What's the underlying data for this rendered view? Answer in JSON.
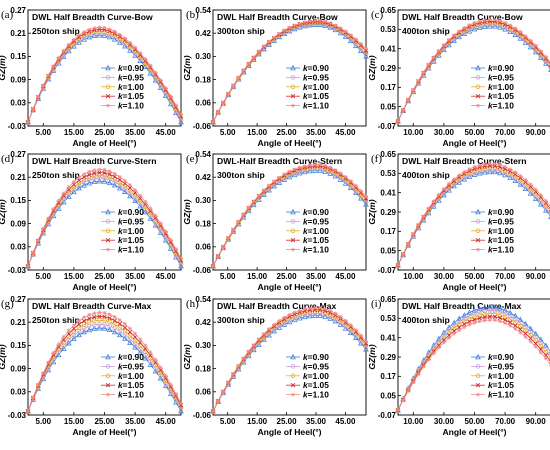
{
  "legend_k_prefix": "k",
  "series_styles": [
    {
      "color": "#3a7fd6",
      "marker": "triangle"
    },
    {
      "color": "#c9a0e0",
      "marker": "circle"
    },
    {
      "color": "#e2b02c",
      "marker": "circle"
    },
    {
      "color": "#d62a2a",
      "marker": "cross"
    },
    {
      "color": "#f08a8a",
      "marker": "star"
    }
  ],
  "chart_data": [
    {
      "type": "line",
      "panel_label": "(a)",
      "title": "DWL Half Breadth Curve-Bow",
      "ship": "250ton ship",
      "xlabel": "Angle of Heel(°)",
      "ylabel": "GZ(m)",
      "xlim": [
        0,
        50
      ],
      "ylim": [
        -0.03,
        0.27
      ],
      "xticks": [
        "5.00",
        "15.00",
        "25.00",
        "35.00",
        "45.00"
      ],
      "xtick_values": [
        5,
        15,
        25,
        35,
        45
      ],
      "yticks": [
        "-0.03",
        "0.03",
        "0.09",
        "0.15",
        "0.21",
        "0.27"
      ],
      "ytick_values": [
        -0.03,
        0.03,
        0.09,
        0.15,
        0.21,
        0.27
      ],
      "peak_x": 24,
      "series": [
        {
          "name": "=0.90",
          "start": -0.02,
          "peak": 0.205,
          "end": -0.02
        },
        {
          "name": "=0.95",
          "start": -0.02,
          "peak": 0.21,
          "end": -0.015
        },
        {
          "name": "=1.00",
          "start": -0.02,
          "peak": 0.215,
          "end": -0.01
        },
        {
          "name": "=1.05",
          "start": -0.02,
          "peak": 0.22,
          "end": -0.005
        },
        {
          "name": "=1.10",
          "start": -0.02,
          "peak": 0.225,
          "end": 0.0
        }
      ]
    },
    {
      "type": "line",
      "panel_label": "(b)",
      "title": "DWL Half Breadth Curve-Bow",
      "ship": "300ton ship",
      "xlabel": "Angle of Heel(°)",
      "ylabel": "GZ(m)",
      "xlim": [
        0,
        52
      ],
      "ylim": [
        -0.06,
        0.54
      ],
      "xticks": [
        "5.00",
        "15.00",
        "25.00",
        "35.00",
        "45.00"
      ],
      "xtick_values": [
        5,
        15,
        25,
        35,
        45
      ],
      "yticks": [
        "-0.06",
        "0.06",
        "0.18",
        "0.30",
        "0.42",
        "0.54"
      ],
      "ytick_values": [
        -0.06,
        0.06,
        0.18,
        0.3,
        0.42,
        0.54
      ],
      "peak_x": 36,
      "series": [
        {
          "name": "=0.90",
          "start": -0.04,
          "peak": 0.465,
          "end": 0.3
        },
        {
          "name": "=0.95",
          "start": -0.04,
          "peak": 0.47,
          "end": 0.31
        },
        {
          "name": "=1.00",
          "start": -0.04,
          "peak": 0.475,
          "end": 0.32
        },
        {
          "name": "=1.05",
          "start": -0.04,
          "peak": 0.48,
          "end": 0.33
        },
        {
          "name": "=1.10",
          "start": -0.04,
          "peak": 0.485,
          "end": 0.34
        }
      ]
    },
    {
      "type": "line",
      "panel_label": "(c)",
      "title": "DWL Half Breadth Curve-Bow",
      "ship": "400ton ship",
      "xlabel": "Angle of Heel(°)",
      "ylabel": "GZ(m)",
      "xlim": [
        0,
        100
      ],
      "ylim": [
        -0.07,
        0.65
      ],
      "xticks": [
        "10.00",
        "30.00",
        "50.00",
        "70.00",
        "90.00"
      ],
      "xtick_values": [
        10,
        30,
        50,
        70,
        90
      ],
      "yticks": [
        "-0.07",
        "0.05",
        "0.17",
        "0.29",
        "0.41",
        "0.53",
        "0.65"
      ],
      "ytick_values": [
        -0.07,
        0.05,
        0.17,
        0.29,
        0.41,
        0.53,
        0.65
      ],
      "peak_x": 62,
      "series": [
        {
          "name": "=0.90",
          "start": -0.04,
          "peak": 0.55,
          "end": 0.28
        },
        {
          "name": "=0.95",
          "start": -0.04,
          "peak": 0.56,
          "end": 0.29
        },
        {
          "name": "=1.00",
          "start": -0.04,
          "peak": 0.57,
          "end": 0.3
        },
        {
          "name": "=1.05",
          "start": -0.04,
          "peak": 0.58,
          "end": 0.31
        },
        {
          "name": "=1.10",
          "start": -0.04,
          "peak": 0.59,
          "end": 0.32
        }
      ]
    },
    {
      "type": "line",
      "panel_label": "(d)",
      "title": "DWL Half Breadth Curve-Stern",
      "ship": "250ton ship",
      "xlabel": "Angle of Heel(°)",
      "ylabel": "GZ(m)",
      "xlim": [
        0,
        50
      ],
      "ylim": [
        -0.03,
        0.27
      ],
      "xticks": [
        "5.00",
        "15.00",
        "25.00",
        "35.00",
        "45.00"
      ],
      "xtick_values": [
        5,
        15,
        25,
        35,
        45
      ],
      "yticks": [
        "-0.03",
        "0.03",
        "0.09",
        "0.15",
        "0.21",
        "0.27"
      ],
      "ytick_values": [
        -0.03,
        0.03,
        0.09,
        0.15,
        0.21,
        0.27
      ],
      "peak_x": 24,
      "series": [
        {
          "name": "=0.90",
          "start": -0.02,
          "peak": 0.2,
          "end": -0.02
        },
        {
          "name": "=0.95",
          "start": -0.02,
          "peak": 0.208,
          "end": -0.015
        },
        {
          "name": "=1.00",
          "start": -0.02,
          "peak": 0.215,
          "end": -0.01
        },
        {
          "name": "=1.05",
          "start": -0.02,
          "peak": 0.222,
          "end": -0.005
        },
        {
          "name": "=1.10",
          "start": -0.02,
          "peak": 0.23,
          "end": 0.0
        }
      ]
    },
    {
      "type": "line",
      "panel_label": "(e)",
      "title": "DWL-Half Breadth Curve-Stern",
      "ship": "300ton ship",
      "xlabel": "Angle of Heel(°)",
      "ylabel": "GZ(m)",
      "xlim": [
        0,
        52
      ],
      "ylim": [
        -0.06,
        0.54
      ],
      "xticks": [
        "5.00",
        "15.00",
        "25.00",
        "35.00",
        "45.00"
      ],
      "xtick_values": [
        5,
        15,
        25,
        35,
        45
      ],
      "yticks": [
        "-0.06",
        "0.06",
        "0.18",
        "0.30",
        "0.42",
        "0.54"
      ],
      "ytick_values": [
        -0.06,
        0.06,
        0.18,
        0.3,
        0.42,
        0.54
      ],
      "peak_x": 36,
      "series": [
        {
          "name": "=0.90",
          "start": -0.04,
          "peak": 0.455,
          "end": 0.28
        },
        {
          "name": "=0.95",
          "start": -0.04,
          "peak": 0.463,
          "end": 0.29
        },
        {
          "name": "=1.00",
          "start": -0.04,
          "peak": 0.47,
          "end": 0.3
        },
        {
          "name": "=1.05",
          "start": -0.04,
          "peak": 0.478,
          "end": 0.31
        },
        {
          "name": "=1.10",
          "start": -0.04,
          "peak": 0.485,
          "end": 0.32
        }
      ]
    },
    {
      "type": "line",
      "panel_label": "(f)",
      "title": "DWL Half Breadth Curve-Stern",
      "ship": "400ton ship",
      "xlabel": "Angle of Heel(°)",
      "ylabel": "GZ(m)",
      "xlim": [
        0,
        100
      ],
      "ylim": [
        -0.07,
        0.65
      ],
      "xticks": [
        "10.00",
        "30.00",
        "50.00",
        "70.00",
        "90.00"
      ],
      "xtick_values": [
        10,
        30,
        50,
        70,
        90
      ],
      "yticks": [
        "-0.07",
        "0.05",
        "0.17",
        "0.29",
        "0.41",
        "0.53",
        "0.65"
      ],
      "ytick_values": [
        -0.07,
        0.05,
        0.17,
        0.29,
        0.41,
        0.53,
        0.65
      ],
      "peak_x": 62,
      "series": [
        {
          "name": "=0.90",
          "start": -0.04,
          "peak": 0.54,
          "end": 0.26
        },
        {
          "name": "=0.95",
          "start": -0.04,
          "peak": 0.552,
          "end": 0.275
        },
        {
          "name": "=1.00",
          "start": -0.04,
          "peak": 0.565,
          "end": 0.29
        },
        {
          "name": "=1.05",
          "start": -0.04,
          "peak": 0.577,
          "end": 0.305
        },
        {
          "name": "=1.10",
          "start": -0.04,
          "peak": 0.59,
          "end": 0.32
        }
      ]
    },
    {
      "type": "line",
      "panel_label": "(g)",
      "title": "DWL Half Breadth Curve-Max",
      "ship": "250ton ship",
      "xlabel": "Angle of Heel(°)",
      "ylabel": "GZ(m)",
      "xlim": [
        0,
        50
      ],
      "ylim": [
        -0.03,
        0.27
      ],
      "xticks": [
        "5.00",
        "15.00",
        "25.00",
        "35.00",
        "45.00"
      ],
      "xtick_values": [
        5,
        15,
        25,
        35,
        45
      ],
      "yticks": [
        "-0.03",
        "0.03",
        "0.09",
        "0.15",
        "0.21",
        "0.27"
      ],
      "ytick_values": [
        -0.03,
        0.03,
        0.09,
        0.15,
        0.21,
        0.27
      ],
      "peak_x": 24,
      "series": [
        {
          "name": "=0.90",
          "start": -0.02,
          "peak": 0.195,
          "end": -0.02
        },
        {
          "name": "=0.95",
          "start": -0.02,
          "peak": 0.205,
          "end": -0.015
        },
        {
          "name": "=1.00",
          "start": -0.02,
          "peak": 0.215,
          "end": -0.01
        },
        {
          "name": "=1.05",
          "start": -0.02,
          "peak": 0.225,
          "end": -0.005
        },
        {
          "name": "=1.10",
          "start": -0.02,
          "peak": 0.235,
          "end": 0.0
        }
      ]
    },
    {
      "type": "line",
      "panel_label": "(h)",
      "title": "DWL Half Breadth Curve-Max",
      "ship": "300ton ship",
      "xlabel": "Angle of Heel(°)",
      "ylabel": "GZ(m)",
      "xlim": [
        0,
        52
      ],
      "ylim": [
        -0.06,
        0.54
      ],
      "xticks": [
        "5.00",
        "15.00",
        "25.00",
        "35.00",
        "45.00"
      ],
      "xtick_values": [
        5,
        15,
        25,
        35,
        45
      ],
      "yticks": [
        "-0.06",
        "0.06",
        "0.18",
        "0.30",
        "0.42",
        "0.54"
      ],
      "ytick_values": [
        -0.06,
        0.06,
        0.18,
        0.3,
        0.42,
        0.54
      ],
      "peak_x": 36,
      "series": [
        {
          "name": "=0.90",
          "start": -0.04,
          "peak": 0.455,
          "end": 0.28
        },
        {
          "name": "=0.95",
          "start": -0.04,
          "peak": 0.465,
          "end": 0.29
        },
        {
          "name": "=1.00",
          "start": -0.04,
          "peak": 0.475,
          "end": 0.3
        },
        {
          "name": "=1.05",
          "start": -0.04,
          "peak": 0.485,
          "end": 0.31
        },
        {
          "name": "=1.10",
          "start": -0.04,
          "peak": 0.495,
          "end": 0.32
        }
      ]
    },
    {
      "type": "line",
      "panel_label": "(i)",
      "title": "DWL Half Breadth Curve-Max",
      "ship": "400ton ship",
      "xlabel": "Angle of Heel(°)",
      "ylabel": "GZ(m)",
      "xlim": [
        0,
        100
      ],
      "ylim": [
        -0.07,
        0.65
      ],
      "xticks": [
        "10.00",
        "30.00",
        "50.00",
        "70.00",
        "90.00"
      ],
      "xtick_values": [
        10,
        30,
        50,
        70,
        90
      ],
      "yticks": [
        "-0.07",
        "0.05",
        "0.17",
        "0.29",
        "0.41",
        "0.53",
        "0.65"
      ],
      "ytick_values": [
        -0.07,
        0.05,
        0.17,
        0.29,
        0.41,
        0.53,
        0.65
      ],
      "peak_x": 62,
      "series": [
        {
          "name": "=0.90",
          "start": -0.04,
          "peak": 0.6,
          "end": 0.32
        },
        {
          "name": "=0.95",
          "start": -0.04,
          "peak": 0.58,
          "end": 0.3
        },
        {
          "name": "=1.00",
          "start": -0.04,
          "peak": 0.56,
          "end": 0.28
        },
        {
          "name": "=1.05",
          "start": -0.04,
          "peak": 0.54,
          "end": 0.26
        },
        {
          "name": "=1.10",
          "start": -0.04,
          "peak": 0.52,
          "end": 0.24
        }
      ]
    }
  ]
}
